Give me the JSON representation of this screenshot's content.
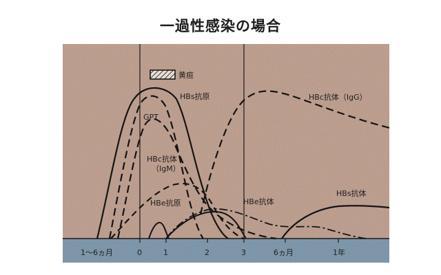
{
  "title": "一過性感染の場合",
  "legend": {
    "label": "黄疸"
  },
  "curve_labels": {
    "hbs_antigen": "HBs抗原",
    "gpt": "GPT",
    "hbc_antibody_igm_line1": "HBc抗体",
    "hbc_antibody_igm_line2": "（IgM）",
    "hbe_antigen": "HBe抗原",
    "hbe_antibody": "HBe抗体",
    "hbc_antibody_igg": "HBc抗体（IgG）",
    "hbs_antibody": "HBs抗体"
  },
  "time_axis": {
    "ticks": [
      "1～6ヵ月",
      "0",
      "1",
      "2",
      "3",
      "6ヵ月",
      "1年"
    ]
  },
  "colors": {
    "background": "#c8a898",
    "axis_band": "#86a0b4",
    "ink": "#1a1a1a"
  }
}
